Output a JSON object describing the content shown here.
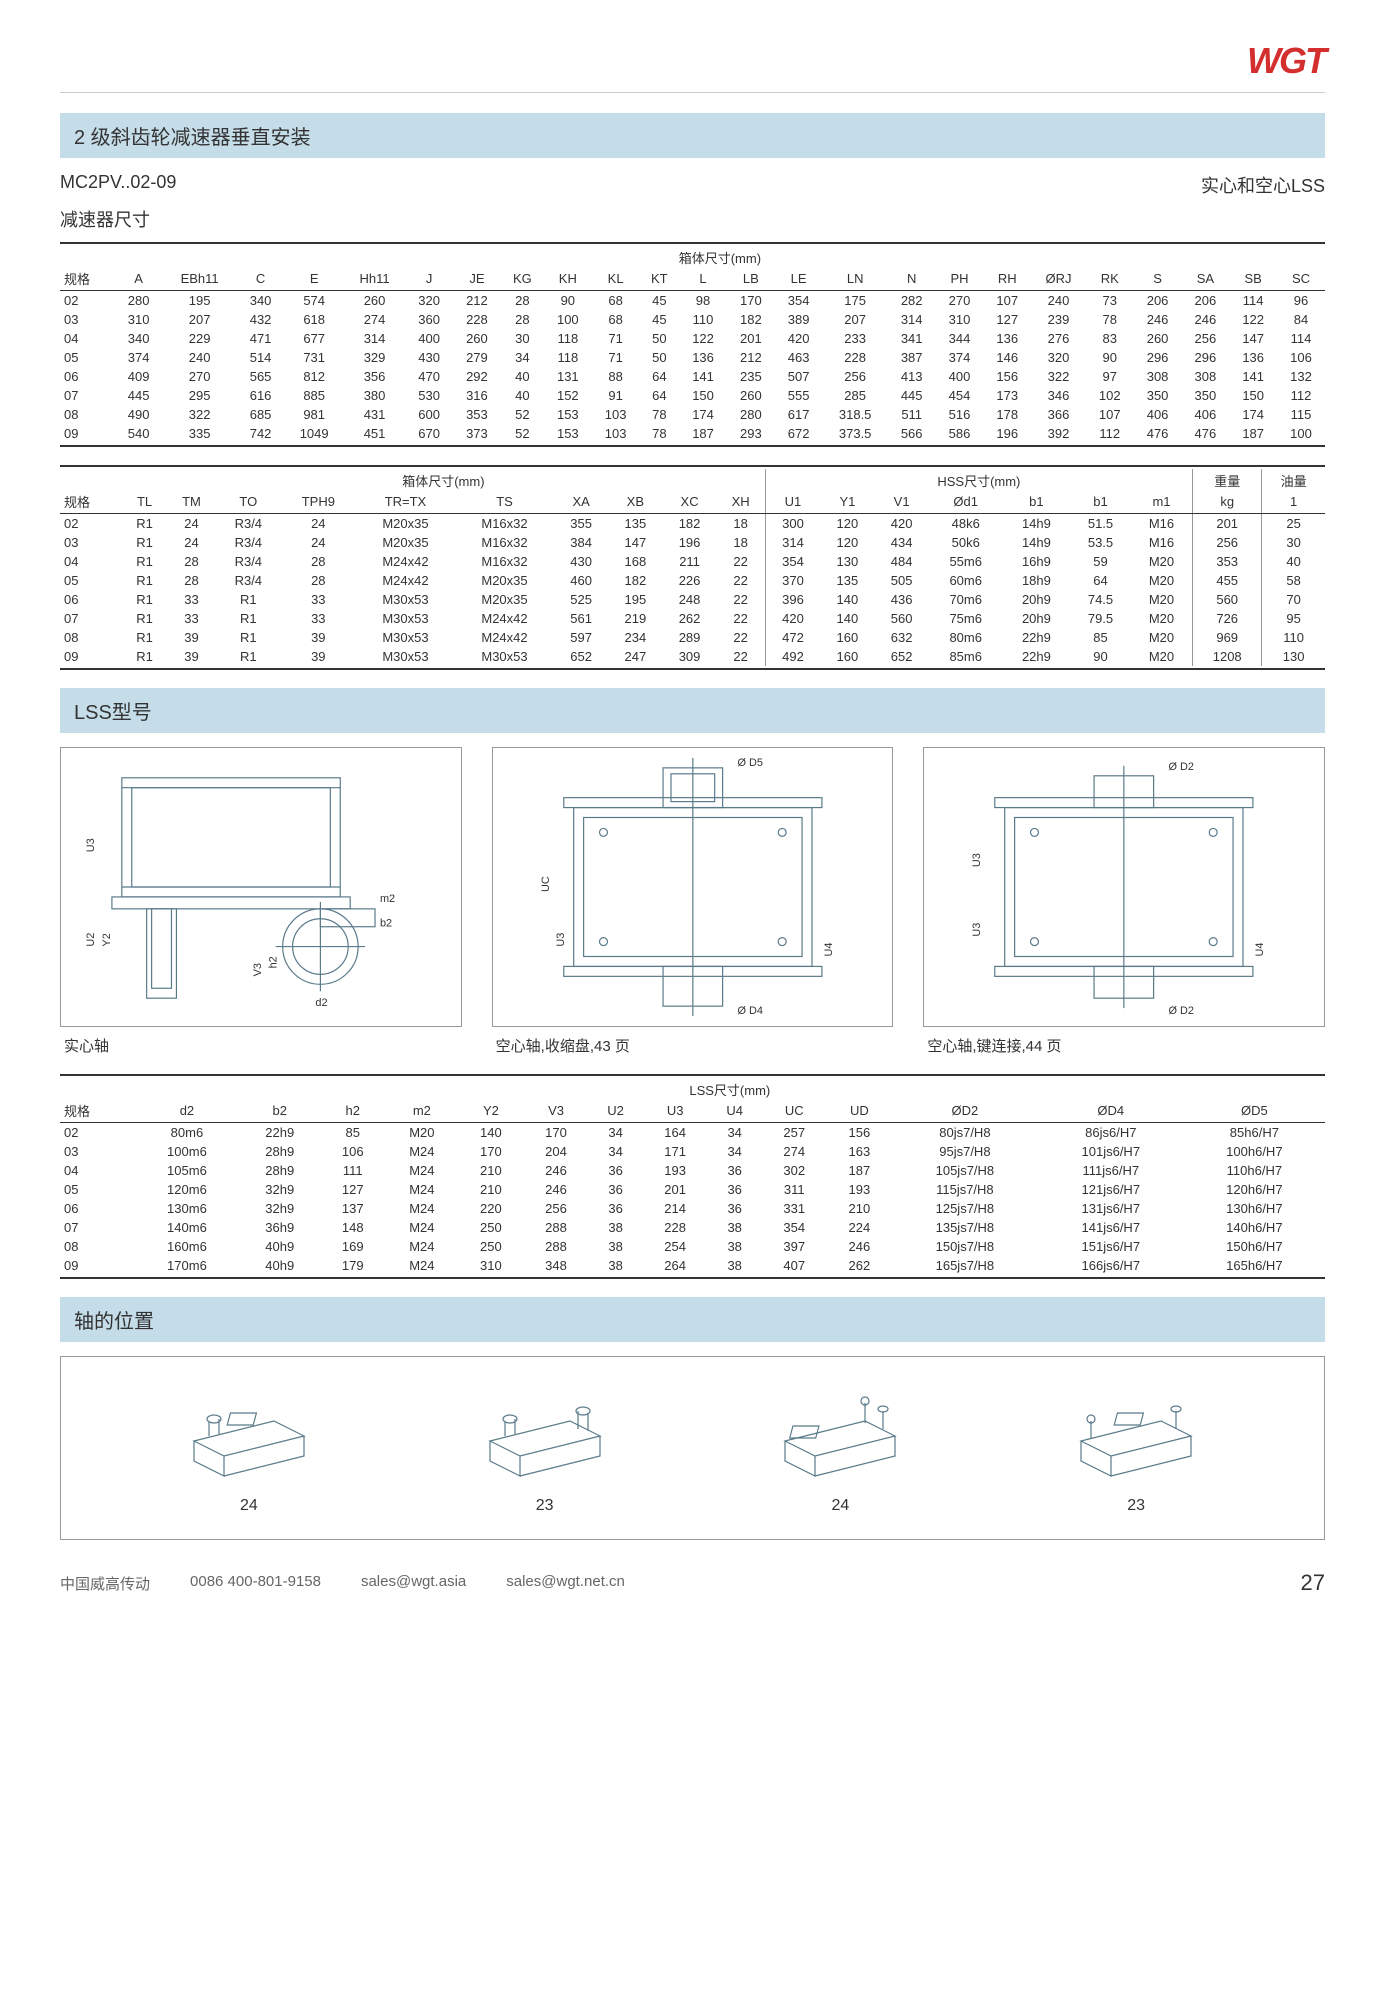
{
  "logo": "WGT",
  "title": "2 级斜齿轮减速器垂直安装",
  "model": "MC2PV..02-09",
  "lss_label": "实心和空心LSS",
  "dim_label": "减速器尺寸",
  "table1": {
    "super": "箱体尺寸(mm)",
    "cols": [
      "规格",
      "A",
      "EBh11",
      "C",
      "E",
      "Hh11",
      "J",
      "JE",
      "KG",
      "KH",
      "KL",
      "KT",
      "L",
      "LB",
      "LE",
      "LN",
      "N",
      "PH",
      "RH",
      "ØRJ",
      "RK",
      "S",
      "SA",
      "SB",
      "SC"
    ],
    "rows": [
      [
        "02",
        "280",
        "195",
        "340",
        "574",
        "260",
        "320",
        "212",
        "28",
        "90",
        "68",
        "45",
        "98",
        "170",
        "354",
        "175",
        "282",
        "270",
        "107",
        "240",
        "73",
        "206",
        "206",
        "114",
        "96"
      ],
      [
        "03",
        "310",
        "207",
        "432",
        "618",
        "274",
        "360",
        "228",
        "28",
        "100",
        "68",
        "45",
        "110",
        "182",
        "389",
        "207",
        "314",
        "310",
        "127",
        "239",
        "78",
        "246",
        "246",
        "122",
        "84"
      ],
      [
        "04",
        "340",
        "229",
        "471",
        "677",
        "314",
        "400",
        "260",
        "30",
        "118",
        "71",
        "50",
        "122",
        "201",
        "420",
        "233",
        "341",
        "344",
        "136",
        "276",
        "83",
        "260",
        "256",
        "147",
        "114"
      ],
      [
        "05",
        "374",
        "240",
        "514",
        "731",
        "329",
        "430",
        "279",
        "34",
        "118",
        "71",
        "50",
        "136",
        "212",
        "463",
        "228",
        "387",
        "374",
        "146",
        "320",
        "90",
        "296",
        "296",
        "136",
        "106"
      ],
      [
        "06",
        "409",
        "270",
        "565",
        "812",
        "356",
        "470",
        "292",
        "40",
        "131",
        "88",
        "64",
        "141",
        "235",
        "507",
        "256",
        "413",
        "400",
        "156",
        "322",
        "97",
        "308",
        "308",
        "141",
        "132"
      ],
      [
        "07",
        "445",
        "295",
        "616",
        "885",
        "380",
        "530",
        "316",
        "40",
        "152",
        "91",
        "64",
        "150",
        "260",
        "555",
        "285",
        "445",
        "454",
        "173",
        "346",
        "102",
        "350",
        "350",
        "150",
        "112"
      ],
      [
        "08",
        "490",
        "322",
        "685",
        "981",
        "431",
        "600",
        "353",
        "52",
        "153",
        "103",
        "78",
        "174",
        "280",
        "617",
        "318.5",
        "511",
        "516",
        "178",
        "366",
        "107",
        "406",
        "406",
        "174",
        "115"
      ],
      [
        "09",
        "540",
        "335",
        "742",
        "1049",
        "451",
        "670",
        "373",
        "52",
        "153",
        "103",
        "78",
        "187",
        "293",
        "672",
        "373.5",
        "566",
        "586",
        "196",
        "392",
        "112",
        "476",
        "476",
        "187",
        "100"
      ]
    ]
  },
  "table2": {
    "super1": "箱体尺寸(mm)",
    "super2": "HSS尺寸(mm)",
    "super3": "重量",
    "super4": "油量",
    "cols": [
      "规格",
      "TL",
      "TM",
      "TO",
      "TPH9",
      "TR=TX",
      "TS",
      "XA",
      "XB",
      "XC",
      "XH",
      "U1",
      "Y1",
      "V1",
      "Ød1",
      "b1",
      "b1",
      "m1",
      "kg",
      "1"
    ],
    "rows": [
      [
        "02",
        "R1",
        "24",
        "R3/4",
        "24",
        "M20x35",
        "M16x32",
        "355",
        "135",
        "182",
        "18",
        "300",
        "120",
        "420",
        "48k6",
        "14h9",
        "51.5",
        "M16",
        "201",
        "25"
      ],
      [
        "03",
        "R1",
        "24",
        "R3/4",
        "24",
        "M20x35",
        "M16x32",
        "384",
        "147",
        "196",
        "18",
        "314",
        "120",
        "434",
        "50k6",
        "14h9",
        "53.5",
        "M16",
        "256",
        "30"
      ],
      [
        "04",
        "R1",
        "28",
        "R3/4",
        "28",
        "M24x42",
        "M16x32",
        "430",
        "168",
        "211",
        "22",
        "354",
        "130",
        "484",
        "55m6",
        "16h9",
        "59",
        "M20",
        "353",
        "40"
      ],
      [
        "05",
        "R1",
        "28",
        "R3/4",
        "28",
        "M24x42",
        "M20x35",
        "460",
        "182",
        "226",
        "22",
        "370",
        "135",
        "505",
        "60m6",
        "18h9",
        "64",
        "M20",
        "455",
        "58"
      ],
      [
        "06",
        "R1",
        "33",
        "R1",
        "33",
        "M30x53",
        "M20x35",
        "525",
        "195",
        "248",
        "22",
        "396",
        "140",
        "436",
        "70m6",
        "20h9",
        "74.5",
        "M20",
        "560",
        "70"
      ],
      [
        "07",
        "R1",
        "33",
        "R1",
        "33",
        "M30x53",
        "M24x42",
        "561",
        "219",
        "262",
        "22",
        "420",
        "140",
        "560",
        "75m6",
        "20h9",
        "79.5",
        "M20",
        "726",
        "95"
      ],
      [
        "08",
        "R1",
        "39",
        "R1",
        "39",
        "M30x53",
        "M24x42",
        "597",
        "234",
        "289",
        "22",
        "472",
        "160",
        "632",
        "80m6",
        "22h9",
        "85",
        "M20",
        "969",
        "110"
      ],
      [
        "09",
        "R1",
        "39",
        "R1",
        "39",
        "M30x53",
        "M30x53",
        "652",
        "247",
        "309",
        "22",
        "492",
        "160",
        "652",
        "85m6",
        "22h9",
        "90",
        "M20",
        "1208",
        "130"
      ]
    ],
    "grp1_span": 10,
    "grp2_span": 7
  },
  "lss_sec": "LSS型号",
  "diags": {
    "c1": "实心轴",
    "c2": "空心轴,收缩盘,43 页",
    "c3": "空心轴,键连接,44 页",
    "l1": [
      "U3",
      "U2",
      "Y2",
      "V3",
      "h2",
      "d2",
      "m2",
      "b2"
    ],
    "l2": [
      "UC",
      "U3",
      "U4",
      "Ø D5",
      "Ø D4"
    ],
    "l3": [
      "U3",
      "U3",
      "U4",
      "Ø D2",
      "Ø D2"
    ]
  },
  "table3": {
    "super": "LSS尺寸(mm)",
    "cols": [
      "规格",
      "d2",
      "b2",
      "h2",
      "m2",
      "Y2",
      "V3",
      "U2",
      "U3",
      "U4",
      "UC",
      "UD",
      "ØD2",
      "ØD4",
      "ØD5"
    ],
    "rows": [
      [
        "02",
        "80m6",
        "22h9",
        "85",
        "M20",
        "140",
        "170",
        "34",
        "164",
        "34",
        "257",
        "156",
        "80js7/H8",
        "86js6/H7",
        "85h6/H7"
      ],
      [
        "03",
        "100m6",
        "28h9",
        "106",
        "M24",
        "170",
        "204",
        "34",
        "171",
        "34",
        "274",
        "163",
        "95js7/H8",
        "101js6/H7",
        "100h6/H7"
      ],
      [
        "04",
        "105m6",
        "28h9",
        "111",
        "M24",
        "210",
        "246",
        "36",
        "193",
        "36",
        "302",
        "187",
        "105js7/H8",
        "111js6/H7",
        "110h6/H7"
      ],
      [
        "05",
        "120m6",
        "32h9",
        "127",
        "M24",
        "210",
        "246",
        "36",
        "201",
        "36",
        "311",
        "193",
        "115js7/H8",
        "121js6/H7",
        "120h6/H7"
      ],
      [
        "06",
        "130m6",
        "32h9",
        "137",
        "M24",
        "220",
        "256",
        "36",
        "214",
        "36",
        "331",
        "210",
        "125js7/H8",
        "131js6/H7",
        "130h6/H7"
      ],
      [
        "07",
        "140m6",
        "36h9",
        "148",
        "M24",
        "250",
        "288",
        "38",
        "228",
        "38",
        "354",
        "224",
        "135js7/H8",
        "141js6/H7",
        "140h6/H7"
      ],
      [
        "08",
        "160m6",
        "40h9",
        "169",
        "M24",
        "250",
        "288",
        "38",
        "254",
        "38",
        "397",
        "246",
        "150js7/H8",
        "151js6/H7",
        "150h6/H7"
      ],
      [
        "09",
        "170m6",
        "40h9",
        "179",
        "M24",
        "310",
        "348",
        "38",
        "264",
        "38",
        "407",
        "262",
        "165js7/H8",
        "166js6/H7",
        "165h6/H7"
      ]
    ]
  },
  "shaft_sec": "轴的位置",
  "shaft_nums": [
    "24",
    "23",
    "24",
    "23"
  ],
  "footer": {
    "company": "中国威高传动",
    "phone": "0086 400-801-9158",
    "email1": "sales@wgt.asia",
    "email2": "sales@wgt.net.cn",
    "page": "27"
  },
  "colors": {
    "header_bg": "#c5dde8",
    "logo": "#d32f2f",
    "line": "#333",
    "svg_stroke": "#5a7a8a"
  }
}
